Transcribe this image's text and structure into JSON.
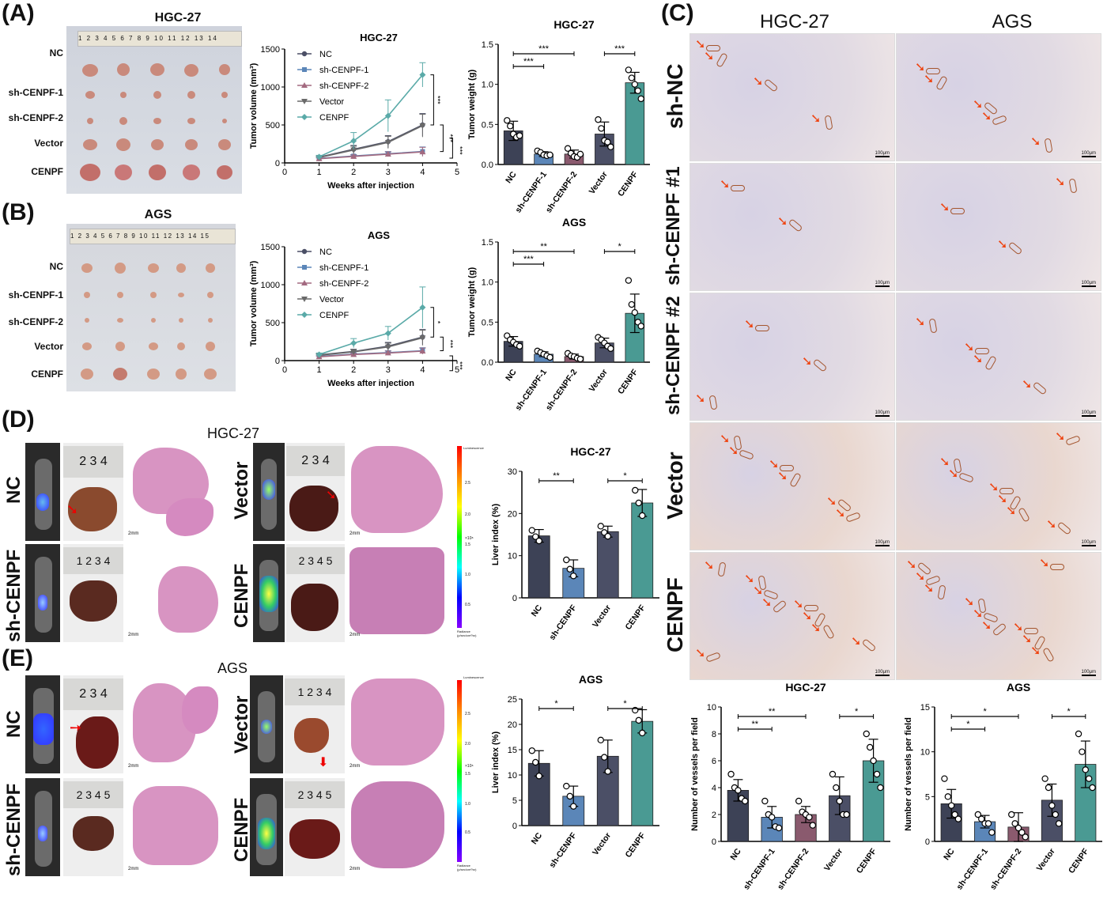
{
  "panels": {
    "A": {
      "letter": "(A)",
      "cell_line": "HGC-27",
      "row_labels": [
        "NC",
        "sh-CENPF-1",
        "sh-CENPF-2",
        "Vector",
        "CENPF"
      ],
      "ruler_ticks": "1 2 3 4 5 6 7 8 9 10 11 12 13 14"
    },
    "B": {
      "letter": "(B)",
      "cell_line": "AGS",
      "row_labels": [
        "NC",
        "sh-CENPF-1",
        "sh-CENPF-2",
        "Vector",
        "CENPF"
      ],
      "ruler_ticks": "1 2 3 4 5 6 7 8 9 10 11 12 13 14 15"
    },
    "C": {
      "letter": "(C)",
      "col_headers": [
        "HGC-27",
        "AGS"
      ],
      "row_labels": [
        "sh-NC",
        "sh-CENPF #1",
        "sh-CENPF #2",
        "Vector",
        "CENPF"
      ],
      "scale_bar": "100μm"
    },
    "D": {
      "letter": "(D)",
      "cell_line": "HGC-27",
      "labels": [
        "NC",
        "sh-CENPF",
        "Vector",
        "CENPF"
      ],
      "scale": "2mm",
      "ruler_a": "2 3 4",
      "ruler_b": "1 2 3 4",
      "ruler_c": "2 3 4",
      "ruler_d": "2 3 4 5"
    },
    "E": {
      "letter": "(E)",
      "cell_line": "AGS",
      "labels": [
        "NC",
        "sh-CENPF",
        "Vector",
        "CENPF"
      ],
      "scale": "2mm",
      "ruler_a": "2 3 4",
      "ruler_b": "2 3 4 5",
      "ruler_c": "1 2 3 4",
      "ruler_d": "2 3 4 5"
    },
    "luminescence": {
      "top": "Luminescence",
      "bottom_line1": "Radiance",
      "bottom_line2": "(p/sec/cm²/sr)",
      "multiplier": "×10⁸",
      "ticks": [
        "2.5",
        "2.0",
        "1.5",
        "1.0",
        "0.5"
      ]
    }
  },
  "colors": {
    "NC": "#3d4256",
    "sh1": "#5b86b8",
    "sh2": "#8a5a6e",
    "Vector": "#4b4f66",
    "CENPF": "#4a9a93",
    "line_NC": "#4b4f66",
    "line_sh1": "#5b86b8",
    "line_sh2": "#a36a80",
    "line_Vector": "#6a6a6a",
    "line_CENPF": "#5aaaa8"
  },
  "chart_data": [
    {
      "id": "A-volume",
      "type": "line",
      "title": "HGC-27",
      "xlabel": "Weeks after injection",
      "ylabel": "Tumor volume (mm³)",
      "x": [
        1,
        2,
        3,
        4
      ],
      "xlim": [
        0,
        5
      ],
      "ylim": [
        0,
        1500
      ],
      "xticks": [
        "0",
        "1",
        "2",
        "3",
        "4",
        "5"
      ],
      "yticks": [
        "0",
        "500",
        "1000",
        "1500"
      ],
      "series": [
        {
          "name": "NC",
          "values": [
            75,
            180,
            280,
            500
          ]
        },
        {
          "name": "sh-CENPF-1",
          "values": [
            60,
            90,
            120,
            150
          ]
        },
        {
          "name": "sh-CENPF-2",
          "values": [
            55,
            85,
            115,
            145
          ]
        },
        {
          "name": "Vector",
          "values": [
            70,
            170,
            270,
            490
          ]
        },
        {
          "name": "CENPF",
          "values": [
            80,
            290,
            620,
            1160
          ]
        }
      ],
      "errors": [
        [
          15,
          50,
          80,
          150
        ],
        [
          10,
          20,
          30,
          60
        ],
        [
          10,
          20,
          30,
          60
        ],
        [
          15,
          50,
          80,
          150
        ],
        [
          20,
          110,
          210,
          160
        ]
      ],
      "sig": [
        "***",
        "***",
        "***"
      ],
      "legend": "top-left"
    },
    {
      "id": "A-weight",
      "type": "bar",
      "title": "HGC-27",
      "ylabel": "Tumor weight (g)",
      "categories": [
        "NC",
        "sh-CENPF-1",
        "sh-CENPF-2",
        "Vector",
        "CENPF"
      ],
      "values": [
        0.42,
        0.13,
        0.13,
        0.38,
        1.02
      ],
      "errors": [
        0.12,
        0.03,
        0.05,
        0.15,
        0.13
      ],
      "ylim": [
        0,
        1.5
      ],
      "yticks": [
        "0.0",
        "0.5",
        "1.0",
        "1.5"
      ],
      "points": [
        [
          0.55,
          0.48,
          0.38,
          0.34,
          0.36
        ],
        [
          0.17,
          0.15,
          0.12,
          0.11,
          0.12
        ],
        [
          0.2,
          0.14,
          0.1,
          0.09,
          0.13
        ],
        [
          0.56,
          0.45,
          0.3,
          0.28,
          0.22
        ],
        [
          1.18,
          1.08,
          1.0,
          0.92,
          0.82
        ]
      ],
      "brackets": [
        {
          "from": 0,
          "to": 2,
          "label": "***"
        },
        {
          "from": 0,
          "to": 1,
          "label": "***"
        },
        {
          "from": 3,
          "to": 4,
          "label": "***"
        }
      ]
    },
    {
      "id": "B-volume",
      "type": "line",
      "title": "AGS",
      "xlabel": "Weeks after injection",
      "ylabel": "Tumor volume (mm³)",
      "x": [
        1,
        2,
        3,
        4
      ],
      "xlim": [
        0,
        5
      ],
      "ylim": [
        0,
        1500
      ],
      "xticks": [
        "0",
        "1",
        "2",
        "3",
        "4",
        "5"
      ],
      "yticks": [
        "0",
        "500",
        "1000",
        "1500"
      ],
      "series": [
        {
          "name": "NC",
          "values": [
            75,
            120,
            190,
            310
          ]
        },
        {
          "name": "sh-CENPF-1",
          "values": [
            55,
            85,
            105,
            130
          ]
        },
        {
          "name": "sh-CENPF-2",
          "values": [
            50,
            80,
            100,
            125
          ]
        },
        {
          "name": "Vector",
          "values": [
            70,
            115,
            180,
            300
          ]
        },
        {
          "name": "CENPF",
          "values": [
            80,
            230,
            360,
            700
          ]
        }
      ],
      "errors": [
        [
          15,
          30,
          50,
          100
        ],
        [
          10,
          15,
          25,
          40
        ],
        [
          10,
          15,
          25,
          40
        ],
        [
          15,
          30,
          50,
          100
        ],
        [
          20,
          60,
          90,
          270
        ]
      ],
      "sig": [
        "*",
        "***",
        "***"
      ],
      "legend": "top-left"
    },
    {
      "id": "B-weight",
      "type": "bar",
      "title": "AGS",
      "ylabel": "Tumor weight (g)",
      "categories": [
        "NC",
        "sh-CENPF-1",
        "sh-CENPF-2",
        "Vector",
        "CENPF"
      ],
      "values": [
        0.26,
        0.1,
        0.07,
        0.24,
        0.61
      ],
      "errors": [
        0.06,
        0.03,
        0.03,
        0.06,
        0.24
      ],
      "ylim": [
        0,
        1.5
      ],
      "yticks": [
        "0.0",
        "0.5",
        "1.0",
        "1.5"
      ],
      "points": [
        [
          0.33,
          0.28,
          0.25,
          0.22,
          0.2
        ],
        [
          0.14,
          0.12,
          0.1,
          0.08,
          0.06
        ],
        [
          0.11,
          0.08,
          0.07,
          0.05,
          0.04
        ],
        [
          0.31,
          0.28,
          0.24,
          0.2,
          0.17
        ],
        [
          1.02,
          0.72,
          0.62,
          0.5,
          0.45
        ]
      ],
      "brackets": [
        {
          "from": 0,
          "to": 2,
          "label": "**"
        },
        {
          "from": 0,
          "to": 1,
          "label": "***"
        },
        {
          "from": 3,
          "to": 4,
          "label": "*"
        }
      ]
    },
    {
      "id": "D-liver",
      "type": "bar",
      "title": "HGC-27",
      "ylabel": "Liver index (%)",
      "categories": [
        "NC",
        "sh-CENPF",
        "Vector",
        "CENPF"
      ],
      "values": [
        14.7,
        7.0,
        15.7,
        22.5
      ],
      "errors": [
        1.5,
        2.0,
        1.3,
        3.2
      ],
      "ylim": [
        0,
        30
      ],
      "yticks": [
        "0",
        "10",
        "20",
        "30"
      ],
      "points": [
        [
          16,
          14.5,
          13.5
        ],
        [
          9,
          6.8,
          5.2
        ],
        [
          17,
          15.5,
          14.6
        ],
        [
          25.5,
          22.5,
          19.5
        ]
      ],
      "brackets": [
        {
          "from": 0,
          "to": 1,
          "label": "**"
        },
        {
          "from": 2,
          "to": 3,
          "label": "*"
        }
      ]
    },
    {
      "id": "E-liver",
      "type": "bar",
      "title": "AGS",
      "ylabel": "Liver index (%)",
      "categories": [
        "NC",
        "sh-CENPF",
        "Vector",
        "CENPF"
      ],
      "values": [
        12.3,
        5.8,
        13.7,
        20.6
      ],
      "errors": [
        2.5,
        2.0,
        3.2,
        2.3
      ],
      "ylim": [
        0,
        25
      ],
      "yticks": [
        "0",
        "5",
        "10",
        "15",
        "20",
        "25"
      ],
      "points": [
        [
          14.8,
          12.5,
          9.8
        ],
        [
          7.8,
          5.8,
          3.8
        ],
        [
          16.9,
          13.5,
          10.7
        ],
        [
          22.8,
          20.8,
          18.3
        ]
      ],
      "brackets": [
        {
          "from": 0,
          "to": 1,
          "label": "*"
        },
        {
          "from": 2,
          "to": 3,
          "label": "*"
        }
      ]
    },
    {
      "id": "C-hgc",
      "type": "bar",
      "title": "HGC-27",
      "ylabel": "Number of vessels per field",
      "categories": [
        "NC",
        "sh-CENPF-1",
        "sh-CENPF-2",
        "Vector",
        "CENPF"
      ],
      "values": [
        3.8,
        1.8,
        2.0,
        3.4,
        6.0
      ],
      "errors": [
        0.8,
        0.8,
        0.6,
        1.4,
        1.6
      ],
      "ylim": [
        0,
        10
      ],
      "yticks": [
        "0",
        "2",
        "4",
        "6",
        "8",
        "10"
      ],
      "points": [
        [
          5,
          4,
          3.8,
          3.2,
          3
        ],
        [
          3,
          2,
          1.8,
          1.1,
          1
        ],
        [
          3,
          2.2,
          2,
          1.8,
          1.2
        ],
        [
          5,
          4,
          3,
          2,
          2
        ],
        [
          8,
          7,
          6,
          5,
          4
        ]
      ],
      "brackets": [
        {
          "from": 0,
          "to": 2,
          "label": "**"
        },
        {
          "from": 0,
          "to": 1,
          "label": "**"
        },
        {
          "from": 3,
          "to": 4,
          "label": "*"
        }
      ]
    },
    {
      "id": "C-ags",
      "type": "bar",
      "title": "AGS",
      "ylabel": "Number of vessels per field",
      "categories": [
        "NC",
        "sh-CENPF-1",
        "sh-CENPF-2",
        "Vector",
        "CENPF"
      ],
      "values": [
        4.2,
        2.2,
        1.6,
        4.6,
        8.6
      ],
      "errors": [
        1.6,
        0.7,
        1.6,
        1.8,
        2.6
      ],
      "ylim": [
        0,
        15
      ],
      "yticks": [
        "0",
        "5",
        "10",
        "15"
      ],
      "points": [
        [
          7,
          5,
          4,
          3,
          2.5
        ],
        [
          3,
          2.5,
          2,
          2,
          1
        ],
        [
          3,
          2,
          1.5,
          1,
          0.5
        ],
        [
          7,
          6,
          4,
          3,
          2
        ],
        [
          12,
          10,
          8,
          7,
          6
        ]
      ],
      "brackets": [
        {
          "from": 0,
          "to": 2,
          "label": "*"
        },
        {
          "from": 0,
          "to": 1,
          "label": "*"
        },
        {
          "from": 3,
          "to": 4,
          "label": "*"
        }
      ]
    }
  ]
}
